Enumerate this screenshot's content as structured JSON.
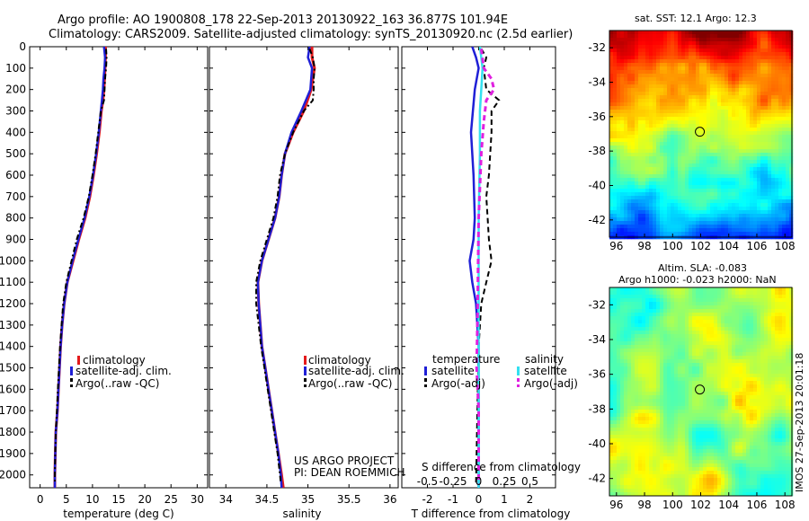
{
  "header": {
    "title_line1": "Argo profile: AO 1900808_178 22-Sep-2013 20130922_163 36.877S 101.94E",
    "title_line2": "Climatology: CARS2009. Satellite-adjusted climatology: synTS_20130920.nc (2.5d earlier)"
  },
  "legend": {
    "climatology": "climatology",
    "satellite_adj": "satellite-adj. clim.",
    "argo_raw": "Argo(..raw -QC)",
    "temperature_head": "temperature",
    "salinity_head": "salinity",
    "satellite": "satellite",
    "argo_adj": "Argo(-adj)"
  },
  "credits": {
    "project": "US ARGO PROJECT",
    "pi": "PI: DEAN ROEMMICH"
  },
  "imos_stamp": "IMOS 27-Sep-2013 20:01:18",
  "colors": {
    "climatology": "#e41a1c",
    "satellite": "#1f1fd6",
    "argo": "#000000",
    "sal_satellite": "#33e0f0",
    "sal_argo": "#e020e0"
  },
  "chart_data": [
    {
      "type": "line",
      "id": "temperature",
      "xlabel": "temperature (deg C)",
      "ylabel": "",
      "xlim": [
        -2,
        32
      ],
      "ylim": [
        2060,
        0
      ],
      "y_inverted": true,
      "xticks": [
        "0",
        "5",
        "10",
        "15",
        "20",
        "25",
        "30"
      ],
      "yticks": [
        "0",
        "100",
        "200",
        "300",
        "400",
        "500",
        "600",
        "700",
        "800",
        "900",
        "1000",
        "1100",
        "1200",
        "1300",
        "1400",
        "1500",
        "1600",
        "1700",
        "1800",
        "1900",
        "2000"
      ],
      "series": [
        {
          "name": "climatology",
          "style": "solid",
          "points": [
            [
              12.5,
              0
            ],
            [
              12.5,
              50
            ],
            [
              12.4,
              100
            ],
            [
              12.3,
              150
            ],
            [
              12.2,
              200
            ],
            [
              12.0,
              250
            ],
            [
              11.7,
              300
            ],
            [
              11.3,
              400
            ],
            [
              10.8,
              500
            ],
            [
              10.2,
              600
            ],
            [
              9.5,
              700
            ],
            [
              8.6,
              800
            ],
            [
              7.4,
              900
            ],
            [
              6.3,
              1000
            ],
            [
              5.2,
              1100
            ],
            [
              4.6,
              1200
            ],
            [
              4.2,
              1300
            ],
            [
              3.9,
              1400
            ],
            [
              3.7,
              1500
            ],
            [
              3.5,
              1600
            ],
            [
              3.3,
              1700
            ],
            [
              3.0,
              1800
            ],
            [
              2.9,
              1900
            ],
            [
              2.8,
              2000
            ],
            [
              2.8,
              2060
            ]
          ]
        },
        {
          "name": "satellite-adj. clim.",
          "style": "solid",
          "points": [
            [
              12.2,
              0
            ],
            [
              12.4,
              50
            ],
            [
              12.3,
              100
            ],
            [
              12.1,
              150
            ],
            [
              12.0,
              200
            ],
            [
              11.8,
              250
            ],
            [
              11.6,
              300
            ],
            [
              11.2,
              400
            ],
            [
              10.7,
              500
            ],
            [
              10.1,
              600
            ],
            [
              9.4,
              700
            ],
            [
              8.5,
              800
            ],
            [
              7.3,
              900
            ],
            [
              6.2,
              1000
            ],
            [
              5.2,
              1100
            ],
            [
              4.6,
              1200
            ],
            [
              4.2,
              1300
            ],
            [
              3.9,
              1400
            ],
            [
              3.7,
              1500
            ],
            [
              3.5,
              1600
            ],
            [
              3.3,
              1700
            ],
            [
              3.0,
              1800
            ],
            [
              2.9,
              1900
            ],
            [
              2.8,
              2000
            ],
            [
              2.8,
              2060
            ]
          ]
        },
        {
          "name": "Argo(..raw -QC)",
          "style": "dashdot",
          "points": [
            [
              12.6,
              10
            ],
            [
              12.7,
              50
            ],
            [
              12.6,
              100
            ],
            [
              12.4,
              150
            ],
            [
              12.3,
              200
            ],
            [
              12.2,
              250
            ],
            [
              11.6,
              300
            ],
            [
              11.1,
              400
            ],
            [
              10.6,
              500
            ],
            [
              10.0,
              600
            ],
            [
              9.3,
              700
            ],
            [
              8.3,
              800
            ],
            [
              7.0,
              900
            ],
            [
              6.0,
              1000
            ],
            [
              5.0,
              1100
            ],
            [
              4.4,
              1200
            ],
            [
              4.1,
              1300
            ],
            [
              3.8,
              1400
            ],
            [
              3.6,
              1500
            ],
            [
              3.4,
              1600
            ],
            [
              3.2,
              1700
            ],
            [
              3.0,
              1800
            ],
            [
              2.9,
              1900
            ],
            [
              2.8,
              2000
            ],
            [
              2.8,
              2040
            ]
          ]
        }
      ]
    },
    {
      "type": "line",
      "id": "salinity",
      "xlabel": "salinity",
      "ylabel": "",
      "xlim": [
        33.8,
        36.1
      ],
      "ylim": [
        2060,
        0
      ],
      "y_inverted": true,
      "xticks": [
        "34",
        "34.5",
        "35",
        "35.5",
        "36"
      ],
      "series": [
        {
          "name": "climatology",
          "style": "solid",
          "points": [
            [
              35.05,
              0
            ],
            [
              35.05,
              50
            ],
            [
              35.08,
              100
            ],
            [
              35.06,
              150
            ],
            [
              35.04,
              200
            ],
            [
              34.95,
              300
            ],
            [
              34.82,
              400
            ],
            [
              34.72,
              500
            ],
            [
              34.68,
              600
            ],
            [
              34.65,
              700
            ],
            [
              34.6,
              800
            ],
            [
              34.52,
              900
            ],
            [
              34.44,
              1000
            ],
            [
              34.39,
              1100
            ],
            [
              34.4,
              1200
            ],
            [
              34.42,
              1300
            ],
            [
              34.44,
              1400
            ],
            [
              34.48,
              1500
            ],
            [
              34.52,
              1600
            ],
            [
              34.56,
              1700
            ],
            [
              34.6,
              1800
            ],
            [
              34.64,
              1900
            ],
            [
              34.68,
              2000
            ],
            [
              34.7,
              2060
            ]
          ]
        },
        {
          "name": "satellite-adj. clim.",
          "style": "solid",
          "points": [
            [
              35.02,
              0
            ],
            [
              35.0,
              50
            ],
            [
              35.05,
              100
            ],
            [
              35.04,
              150
            ],
            [
              35.03,
              200
            ],
            [
              34.92,
              300
            ],
            [
              34.8,
              400
            ],
            [
              34.72,
              500
            ],
            [
              34.68,
              600
            ],
            [
              34.65,
              700
            ],
            [
              34.6,
              800
            ],
            [
              34.52,
              900
            ],
            [
              34.44,
              1000
            ],
            [
              34.39,
              1100
            ],
            [
              34.4,
              1200
            ],
            [
              34.42,
              1300
            ],
            [
              34.44,
              1400
            ],
            [
              34.48,
              1500
            ],
            [
              34.52,
              1600
            ],
            [
              34.56,
              1700
            ],
            [
              34.6,
              1800
            ],
            [
              34.64,
              1900
            ],
            [
              34.67,
              2000
            ],
            [
              34.68,
              2060
            ]
          ]
        },
        {
          "name": "Argo(..raw -QC)",
          "style": "dashdot",
          "points": [
            [
              35.02,
              10
            ],
            [
              35.06,
              50
            ],
            [
              35.08,
              100
            ],
            [
              35.07,
              150
            ],
            [
              35.07,
              200
            ],
            [
              35.06,
              250
            ],
            [
              34.95,
              300
            ],
            [
              34.82,
              400
            ],
            [
              34.72,
              500
            ],
            [
              34.66,
              600
            ],
            [
              34.63,
              700
            ],
            [
              34.58,
              800
            ],
            [
              34.5,
              900
            ],
            [
              34.42,
              1000
            ],
            [
              34.37,
              1100
            ],
            [
              34.37,
              1200
            ],
            [
              34.4,
              1300
            ],
            [
              34.43,
              1400
            ],
            [
              34.47,
              1500
            ],
            [
              34.51,
              1600
            ],
            [
              34.55,
              1700
            ],
            [
              34.59,
              1800
            ],
            [
              34.63,
              1900
            ],
            [
              34.66,
              2000
            ],
            [
              34.67,
              2040
            ]
          ]
        }
      ]
    },
    {
      "type": "line",
      "id": "differences",
      "xlabel": "T difference from climatology",
      "xlabel2": "S difference from climatology",
      "xlim": [
        -3,
        3
      ],
      "ylim": [
        2060,
        0
      ],
      "y_inverted": true,
      "xticks": [
        "-2",
        "-1",
        "0",
        "1",
        "2"
      ],
      "xticks_s": [
        "-0.5",
        "-0.25",
        "0",
        "0.25",
        "0.5"
      ],
      "series": [
        {
          "name": "temperature satellite",
          "style": "solid",
          "points": [
            [
              -0.25,
              0
            ],
            [
              -0.1,
              50
            ],
            [
              0.0,
              100
            ],
            [
              -0.15,
              200
            ],
            [
              -0.3,
              400
            ],
            [
              -0.2,
              600
            ],
            [
              -0.15,
              800
            ],
            [
              -0.2,
              900
            ],
            [
              -0.35,
              1000
            ],
            [
              -0.25,
              1100
            ],
            [
              -0.1,
              1200
            ],
            [
              0.0,
              1400
            ],
            [
              0.0,
              2060
            ]
          ]
        },
        {
          "name": "temperature Argo(-adj)",
          "style": "dashed",
          "points": [
            [
              0.1,
              10
            ],
            [
              0.3,
              50
            ],
            [
              0.2,
              100
            ],
            [
              0.3,
              200
            ],
            [
              0.8,
              250
            ],
            [
              0.5,
              300
            ],
            [
              0.5,
              400
            ],
            [
              0.4,
              600
            ],
            [
              0.3,
              700
            ],
            [
              0.35,
              800
            ],
            [
              0.4,
              900
            ],
            [
              0.5,
              1000
            ],
            [
              0.3,
              1100
            ],
            [
              0.1,
              1200
            ],
            [
              0.0,
              1400
            ],
            [
              -0.05,
              1700
            ],
            [
              -0.1,
              2040
            ]
          ]
        },
        {
          "name": "salinity satellite",
          "style": "solid",
          "points": [
            [
              0.05,
              0
            ],
            [
              0.1,
              50
            ],
            [
              0.15,
              100
            ],
            [
              0.1,
              200
            ],
            [
              0.05,
              300
            ],
            [
              0.05,
              500
            ],
            [
              0.0,
              800
            ],
            [
              0.0,
              2060
            ]
          ]
        },
        {
          "name": "salinity Argo(-adj)",
          "style": "dashed",
          "points": [
            [
              0.1,
              10
            ],
            [
              0.2,
              100
            ],
            [
              0.5,
              150
            ],
            [
              0.6,
              200
            ],
            [
              0.3,
              250
            ],
            [
              0.2,
              350
            ],
            [
              0.1,
              500
            ],
            [
              0.0,
              800
            ],
            [
              -0.05,
              1300
            ],
            [
              -0.08,
              1500
            ],
            [
              0.0,
              1700
            ],
            [
              0.0,
              2040
            ]
          ]
        }
      ]
    },
    {
      "type": "heatmap",
      "id": "sst_map",
      "title": "sat. SST: 12.1  Argo: 12.3",
      "xlim": [
        95.5,
        108.5
      ],
      "ylim": [
        -43,
        -31
      ],
      "xticks": [
        "96",
        "98",
        "100",
        "102",
        "104",
        "106",
        "108"
      ],
      "yticks": [
        "-32",
        "-34",
        "-36",
        "-38",
        "-40",
        "-42"
      ],
      "marker": {
        "lon": 101.94,
        "lat": -36.877
      }
    },
    {
      "type": "heatmap",
      "id": "sla_map",
      "title": "Altim. SLA: -0.083",
      "subtitle": "Argo h1000: -0.023 h2000: NaN",
      "xlim": [
        95.5,
        108.5
      ],
      "ylim": [
        -43,
        -31
      ],
      "xticks": [
        "96",
        "98",
        "100",
        "102",
        "104",
        "106",
        "108"
      ],
      "yticks": [
        "-32",
        "-34",
        "-36",
        "-38",
        "-40",
        "-42"
      ],
      "marker": {
        "lon": 101.94,
        "lat": -36.877
      }
    }
  ]
}
